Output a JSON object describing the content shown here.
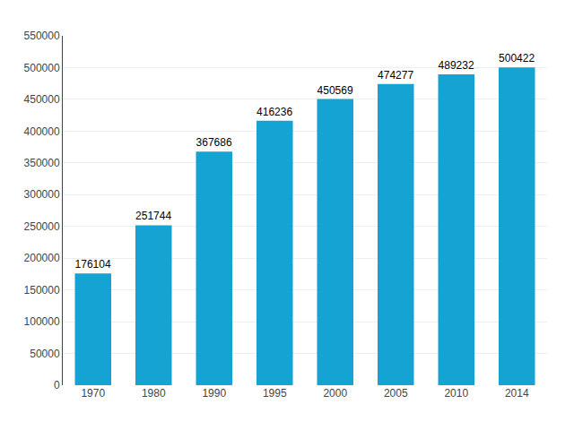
{
  "chart_data": {
    "type": "bar",
    "categories": [
      "1970",
      "1980",
      "1990",
      "1995",
      "2000",
      "2005",
      "2010",
      "2014"
    ],
    "values": [
      176104,
      251744,
      367686,
      416236,
      450569,
      474277,
      489232,
      500422
    ],
    "color": "#15a3d4",
    "ylim": [
      0,
      550000
    ],
    "yticks": [
      0,
      50000,
      100000,
      150000,
      200000,
      250000,
      300000,
      350000,
      400000,
      450000,
      500000,
      550000
    ],
    "grid": true,
    "data_labels": true
  }
}
